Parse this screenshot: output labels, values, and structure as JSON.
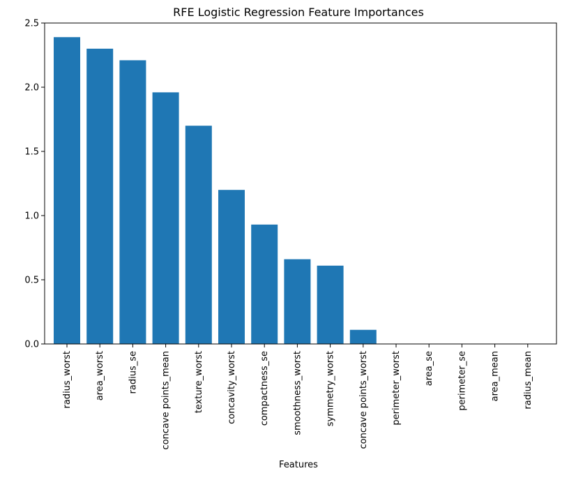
{
  "chart_data": {
    "type": "bar",
    "title": "RFE Logistic Regression Feature Importances",
    "xlabel": "Features",
    "ylabel": "",
    "categories": [
      "radius_worst",
      "area_worst",
      "radius_se",
      "concave points_mean",
      "texture_worst",
      "concavity_worst",
      "compactness_se",
      "smoothness_worst",
      "symmetry_worst",
      "concave points_worst",
      "perimeter_worst",
      "area_se",
      "perimeter_se",
      "area_mean",
      "radius_mean"
    ],
    "values": [
      2.39,
      2.3,
      2.21,
      1.96,
      1.7,
      1.2,
      0.93,
      0.66,
      0.61,
      0.11,
      0.0,
      0.0,
      0.0,
      0.0,
      0.0
    ],
    "ylim": [
      0,
      2.5
    ],
    "yticks": [
      0.0,
      0.5,
      1.0,
      1.5,
      2.0,
      2.5
    ],
    "ytick_labels": [
      "0.0",
      "0.5",
      "1.0",
      "1.5",
      "2.0",
      "2.5"
    ],
    "grid": false,
    "bar_color": "#1f77b4"
  }
}
